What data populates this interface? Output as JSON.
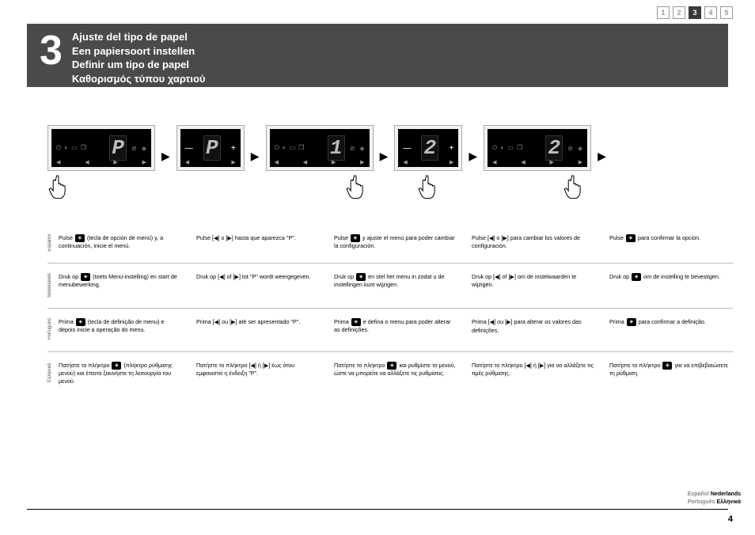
{
  "page_tabs": {
    "items": [
      "1",
      "2",
      "3",
      "4",
      "5"
    ],
    "active_index": 2
  },
  "header": {
    "step_number": "3",
    "title_es": "Ajuste del tipo de papel",
    "title_nl": "Een papiersoort instellen",
    "title_pt": "Definir um tipo de papel",
    "title_el": "Καθορισμός τύπου χαρτιού"
  },
  "panels": [
    {
      "width": "wide",
      "digit": "P",
      "hand": "left"
    },
    {
      "width": "narrow",
      "digit": "P",
      "hand": null
    },
    {
      "width": "wide",
      "digit": "1",
      "hand": "right"
    },
    {
      "width": "narrow",
      "digit": "2",
      "hand": "center"
    },
    {
      "width": "wide",
      "digit": "2",
      "hand": "right"
    }
  ],
  "languages": [
    {
      "label": "Español",
      "cells": [
        {
          "pre": "Pulse ",
          "icon": "diamond",
          "post": " (tecla de opción de menú) y, a continuación, inicie el menú."
        },
        {
          "pre": "Pulse [",
          "tri1": "◀",
          "mid": "] o [",
          "tri2": "▶",
          "post": "] hasta que aparezca \"P\"."
        },
        {
          "pre": "Pulse ",
          "icon": "diamond",
          "post": " y ajuste el menú para poder cambiar la configuración."
        },
        {
          "pre": "Pulse [",
          "tri1": "◀",
          "mid": "] o [",
          "tri2": "▶",
          "post": "] para cambiar los valores de configuración."
        },
        {
          "pre": "Pulse ",
          "icon": "diamond",
          "post": " para confirmar la opción."
        }
      ]
    },
    {
      "label": "Nederlands",
      "cells": [
        {
          "pre": "Druk op ",
          "icon": "diamond",
          "post": " (toets Menu-instelling) en start de menubewerking."
        },
        {
          "pre": "Druk op [",
          "tri1": "◀",
          "mid": "] of [",
          "tri2": "▶",
          "post": "] tot \"P\" wordt weergegeven."
        },
        {
          "pre": "Druk op ",
          "icon": "diamond",
          "post": " en stel het menu in zodat u de instellingen kunt wijzigen."
        },
        {
          "pre": "Druk op [",
          "tri1": "◀",
          "mid": "] of [",
          "tri2": "▶",
          "post": "] om de instelwaarden te wijzigen."
        },
        {
          "pre": "Druk op ",
          "icon": "diamond",
          "post": " om de instelling te bevestigen."
        }
      ]
    },
    {
      "label": "Português",
      "cells": [
        {
          "pre": "Prima ",
          "icon": "diamond",
          "post": " (tecla de definição de menu) e depois inicie a operação do menu."
        },
        {
          "pre": "Prima [",
          "tri1": "◀",
          "mid": "] ou [",
          "tri2": "▶",
          "post": "] até ser apresentado \"P\"."
        },
        {
          "pre": "Prima ",
          "icon": "diamond",
          "post": " e defina o menu para poder alterar as definições."
        },
        {
          "pre": "Prima [",
          "tri1": "◀",
          "mid": "] ou [",
          "tri2": "▶",
          "post": "] para alterar os valores das definições."
        },
        {
          "pre": "Prima ",
          "icon": "diamond",
          "post": " para confirmar a definição."
        }
      ]
    },
    {
      "label": "Ελληνικά",
      "cells": [
        {
          "pre": "Πατήστε το πλήκτρο ",
          "icon": "diamond",
          "post": " (πλήκτρο ρύθμισης μενού) και έπειτα ξεκινήστε τη λειτουργία του μενού."
        },
        {
          "pre": "Πατήστε το πλήκτρο [",
          "tri1": "◀",
          "mid": "] ή [",
          "tri2": "▶",
          "post": "] έως ότου εμφανιστεί η ένδειξη \"P\"."
        },
        {
          "pre": "Πατήστε το πλήκτρο ",
          "icon": "diamond",
          "post": " και ρυθμίστε το μενού, ώστε να μπορείτε να αλλάξετε τις ρυθμίσεις."
        },
        {
          "pre": "Πατήστε το πλήκτρο [",
          "tri1": "◀",
          "mid": "] ή [",
          "tri2": "▶",
          "post": "] για να αλλάξετε τις τιμές ρύθμισης."
        },
        {
          "pre": "Πατήστε το πλήκτρο ",
          "icon": "diamond",
          "post": " για να επιβεβαιώσετε τη ρύθμιση."
        }
      ]
    }
  ],
  "side_langs": {
    "row1": [
      "Español",
      "Nederlands"
    ],
    "row2": [
      "Português",
      "Ελληνικά"
    ]
  },
  "page_number": "4",
  "icons": {
    "diamond_glyph": "◈",
    "arrow_glyph": "▶",
    "plus": "+",
    "minus": "—"
  },
  "colors": {
    "header_bg": "#4a4a4a",
    "panel_bg": "#000000",
    "digit_color": "#bbbbbb",
    "tab_active_bg": "#3a3a3a"
  }
}
